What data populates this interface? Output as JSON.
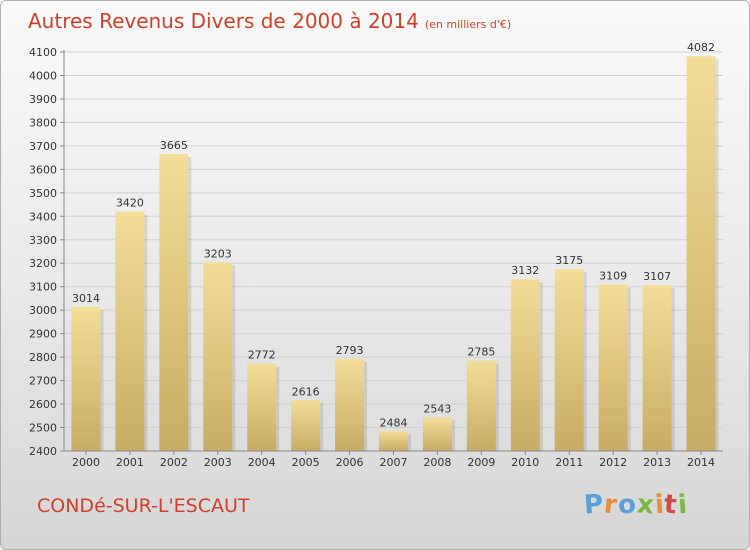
{
  "header": {
    "title": "Autres Revenus Divers de 2000 à 2014",
    "unit": "(en milliers d'€)"
  },
  "footer": {
    "town": "CONDé-SUR-L'ESCAUT",
    "brand": "Proxiti"
  },
  "colors": {
    "title": "#d2402a",
    "bar_top": "#f3de98",
    "bar_bottom": "#c7ac63",
    "brand_letters": [
      "#5aa0d6",
      "#e2903a",
      "#5aa0d6",
      "#7cb842",
      "#e2903a",
      "#d04a4a",
      "#7cb842"
    ]
  },
  "chart_data": {
    "type": "bar",
    "categories": [
      "2000",
      "2001",
      "2002",
      "2003",
      "2004",
      "2005",
      "2006",
      "2007",
      "2008",
      "2009",
      "2010",
      "2011",
      "2012",
      "2013",
      "2014"
    ],
    "values": [
      3014,
      3420,
      3665,
      3203,
      2772,
      2616,
      2793,
      2484,
      2543,
      2785,
      3132,
      3175,
      3109,
      3107,
      4082
    ],
    "ylim": [
      2400,
      4100
    ],
    "yticks": [
      2400,
      2500,
      2600,
      2700,
      2800,
      2900,
      3000,
      3100,
      3200,
      3300,
      3400,
      3500,
      3600,
      3700,
      3800,
      3900,
      4000,
      4100
    ],
    "grid": true,
    "legend": "none"
  }
}
